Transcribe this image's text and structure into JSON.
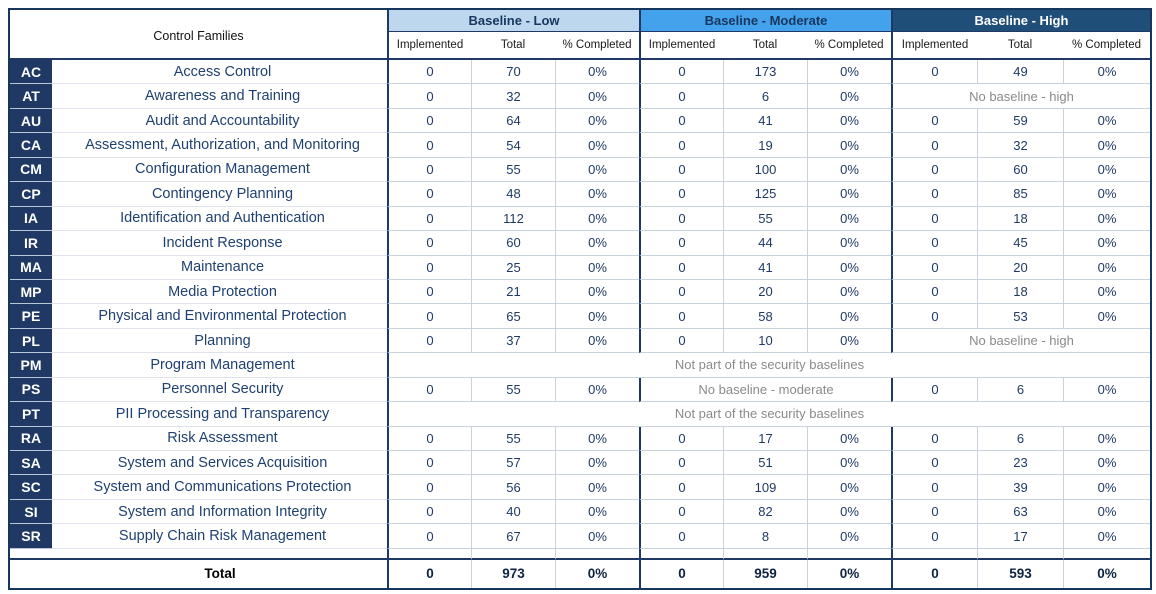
{
  "header": {
    "control_families_label": "Control Families",
    "sections": [
      {
        "label": "Baseline - Low",
        "bg": "#BDD7EE",
        "text_color": "#17375E"
      },
      {
        "label": "Baseline - Moderate",
        "bg": "#44A1EC",
        "text_color": "#17375E"
      },
      {
        "label": "Baseline - High",
        "bg": "#1F4E79",
        "text_color": "#FFFFFF"
      }
    ],
    "sub_columns": [
      "Implemented",
      "Total",
      "% Completed"
    ]
  },
  "rows": [
    {
      "code": "AC",
      "name": "Access Control",
      "low": [
        "0",
        "70",
        "0%"
      ],
      "moderate": [
        "0",
        "173",
        "0%"
      ],
      "high": [
        "0",
        "49",
        "0%"
      ]
    },
    {
      "code": "AT",
      "name": "Awareness and Training",
      "low": [
        "0",
        "32",
        "0%"
      ],
      "moderate": [
        "0",
        "6",
        "0%"
      ],
      "note": {
        "span": "high",
        "text": "No baseline - high"
      }
    },
    {
      "code": "AU",
      "name": "Audit and Accountability",
      "low": [
        "0",
        "64",
        "0%"
      ],
      "moderate": [
        "0",
        "41",
        "0%"
      ],
      "high": [
        "0",
        "59",
        "0%"
      ]
    },
    {
      "code": "CA",
      "name": "Assessment, Authorization, and Monitoring",
      "low": [
        "0",
        "54",
        "0%"
      ],
      "moderate": [
        "0",
        "19",
        "0%"
      ],
      "high": [
        "0",
        "32",
        "0%"
      ]
    },
    {
      "code": "CM",
      "name": "Configuration Management",
      "low": [
        "0",
        "55",
        "0%"
      ],
      "moderate": [
        "0",
        "100",
        "0%"
      ],
      "high": [
        "0",
        "60",
        "0%"
      ]
    },
    {
      "code": "CP",
      "name": "Contingency Planning",
      "low": [
        "0",
        "48",
        "0%"
      ],
      "moderate": [
        "0",
        "125",
        "0%"
      ],
      "high": [
        "0",
        "85",
        "0%"
      ]
    },
    {
      "code": "IA",
      "name": "Identification and Authentication",
      "low": [
        "0",
        "112",
        "0%"
      ],
      "moderate": [
        "0",
        "55",
        "0%"
      ],
      "high": [
        "0",
        "18",
        "0%"
      ]
    },
    {
      "code": "IR",
      "name": "Incident Response",
      "low": [
        "0",
        "60",
        "0%"
      ],
      "moderate": [
        "0",
        "44",
        "0%"
      ],
      "high": [
        "0",
        "45",
        "0%"
      ]
    },
    {
      "code": "MA",
      "name": "Maintenance",
      "low": [
        "0",
        "25",
        "0%"
      ],
      "moderate": [
        "0",
        "41",
        "0%"
      ],
      "high": [
        "0",
        "20",
        "0%"
      ]
    },
    {
      "code": "MP",
      "name": "Media Protection",
      "low": [
        "0",
        "21",
        "0%"
      ],
      "moderate": [
        "0",
        "20",
        "0%"
      ],
      "high": [
        "0",
        "18",
        "0%"
      ]
    },
    {
      "code": "PE",
      "name": "Physical and Environmental Protection",
      "low": [
        "0",
        "65",
        "0%"
      ],
      "moderate": [
        "0",
        "58",
        "0%"
      ],
      "high": [
        "0",
        "53",
        "0%"
      ]
    },
    {
      "code": "PL",
      "name": "Planning",
      "low": [
        "0",
        "37",
        "0%"
      ],
      "moderate": [
        "0",
        "10",
        "0%"
      ],
      "note": {
        "span": "high",
        "text": "No baseline - high"
      }
    },
    {
      "code": "PM",
      "name": "Program Management",
      "note": {
        "span": "all",
        "text": "Not part of the security baselines"
      }
    },
    {
      "code": "PS",
      "name": "Personnel Security",
      "low": [
        "0",
        "55",
        "0%"
      ],
      "note": {
        "span": "moderate",
        "text": "No baseline - moderate"
      },
      "high": [
        "0",
        "6",
        "0%"
      ]
    },
    {
      "code": "PT",
      "name": "PII Processing and Transparency",
      "note": {
        "span": "all",
        "text": "Not part of the security baselines"
      }
    },
    {
      "code": "RA",
      "name": "Risk Assessment",
      "low": [
        "0",
        "55",
        "0%"
      ],
      "moderate": [
        "0",
        "17",
        "0%"
      ],
      "high": [
        "0",
        "6",
        "0%"
      ]
    },
    {
      "code": "SA",
      "name": "System and Services Acquisition",
      "low": [
        "0",
        "57",
        "0%"
      ],
      "moderate": [
        "0",
        "51",
        "0%"
      ],
      "high": [
        "0",
        "23",
        "0%"
      ]
    },
    {
      "code": "SC",
      "name": "System and Communications Protection",
      "low": [
        "0",
        "56",
        "0%"
      ],
      "moderate": [
        "0",
        "109",
        "0%"
      ],
      "high": [
        "0",
        "39",
        "0%"
      ]
    },
    {
      "code": "SI",
      "name": "System and Information Integrity",
      "low": [
        "0",
        "40",
        "0%"
      ],
      "moderate": [
        "0",
        "82",
        "0%"
      ],
      "high": [
        "0",
        "63",
        "0%"
      ]
    },
    {
      "code": "SR",
      "name": "Supply Chain Risk Management",
      "low": [
        "0",
        "67",
        "0%"
      ],
      "moderate": [
        "0",
        "8",
        "0%"
      ],
      "high": [
        "0",
        "17",
        "0%"
      ]
    }
  ],
  "total_row": {
    "label": "Total",
    "low": [
      "0",
      "973",
      "0%"
    ],
    "moderate": [
      "0",
      "959",
      "0%"
    ],
    "high": [
      "0",
      "593",
      "0%"
    ]
  },
  "colors": {
    "dark_navy": "#1F3864",
    "high_header": "#1F4E79",
    "moderate_header": "#44A1EC",
    "low_header": "#BDD7EE",
    "note_gray": "#8a8a8a",
    "row_line": "#c9d3e0"
  }
}
